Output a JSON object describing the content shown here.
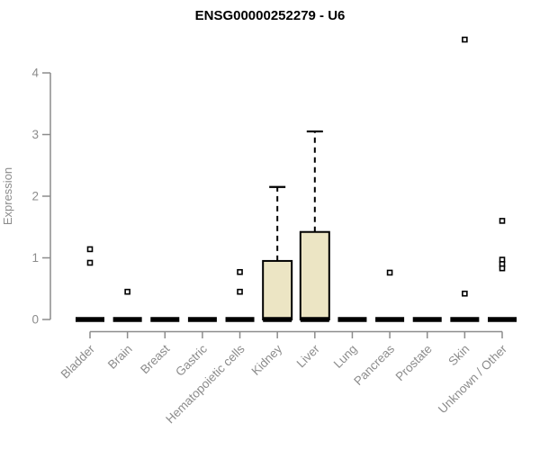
{
  "chart_data": {
    "type": "boxplot",
    "title": "ENSG00000252279 - U6",
    "ylabel": "Expression",
    "xlabel": "",
    "ylim": [
      0,
      4
    ],
    "yticks": [
      0,
      1,
      2,
      3,
      4
    ],
    "grid": false,
    "legend": false,
    "categories": [
      "Bladder",
      "Brain",
      "Breast",
      "Gastric",
      "Hematopoietic cells",
      "Kidney",
      "Liver",
      "Lung",
      "Pancreas",
      "Prostate",
      "Skin",
      "Unknown / Other"
    ],
    "series": [
      {
        "category": "Bladder",
        "whisker_low": 0,
        "q1": 0,
        "median": 0,
        "q3": 0,
        "whisker_high": 0,
        "outliers": [
          1.14,
          0.92
        ]
      },
      {
        "category": "Brain",
        "whisker_low": 0,
        "q1": 0,
        "median": 0,
        "q3": 0,
        "whisker_high": 0,
        "outliers": [
          0.45
        ]
      },
      {
        "category": "Breast",
        "whisker_low": 0,
        "q1": 0,
        "median": 0,
        "q3": 0,
        "whisker_high": 0,
        "outliers": []
      },
      {
        "category": "Gastric",
        "whisker_low": 0,
        "q1": 0,
        "median": 0,
        "q3": 0,
        "whisker_high": 0,
        "outliers": []
      },
      {
        "category": "Hematopoietic cells",
        "whisker_low": 0,
        "q1": 0,
        "median": 0,
        "q3": 0,
        "whisker_high": 0,
        "outliers": [
          0.77,
          0.45
        ]
      },
      {
        "category": "Kidney",
        "whisker_low": 0,
        "q1": 0,
        "median": 0,
        "q3": 0.95,
        "whisker_high": 2.15,
        "outliers": []
      },
      {
        "category": "Liver",
        "whisker_low": 0,
        "q1": 0,
        "median": 0,
        "q3": 1.42,
        "whisker_high": 3.05,
        "outliers": []
      },
      {
        "category": "Lung",
        "whisker_low": 0,
        "q1": 0,
        "median": 0,
        "q3": 0,
        "whisker_high": 0,
        "outliers": []
      },
      {
        "category": "Pancreas",
        "whisker_low": 0,
        "q1": 0,
        "median": 0,
        "q3": 0,
        "whisker_high": 0,
        "outliers": [
          0.76
        ]
      },
      {
        "category": "Prostate",
        "whisker_low": 0,
        "q1": 0,
        "median": 0,
        "q3": 0,
        "whisker_high": 0,
        "outliers": []
      },
      {
        "category": "Skin",
        "whisker_low": 0,
        "q1": 0,
        "median": 0,
        "q3": 0,
        "whisker_high": 0,
        "outliers": [
          4.54,
          0.42
        ]
      },
      {
        "category": "Unknown / Other",
        "whisker_low": 0,
        "q1": 0,
        "median": 0,
        "q3": 0,
        "whisker_high": 0,
        "outliers": [
          1.6,
          0.97,
          0.9,
          0.83
        ]
      }
    ],
    "colors": {
      "box_fill": "#ECE5C4",
      "box_border": "#000000",
      "median": "#000000",
      "whisker": "#000000",
      "outlier_stroke": "#000000",
      "outlier_fill": "#FFFFFF",
      "axis": "#8C8C8C",
      "tick_text": "#8C8C8C",
      "title_text": "#000000",
      "background": "#FFFFFF"
    }
  }
}
